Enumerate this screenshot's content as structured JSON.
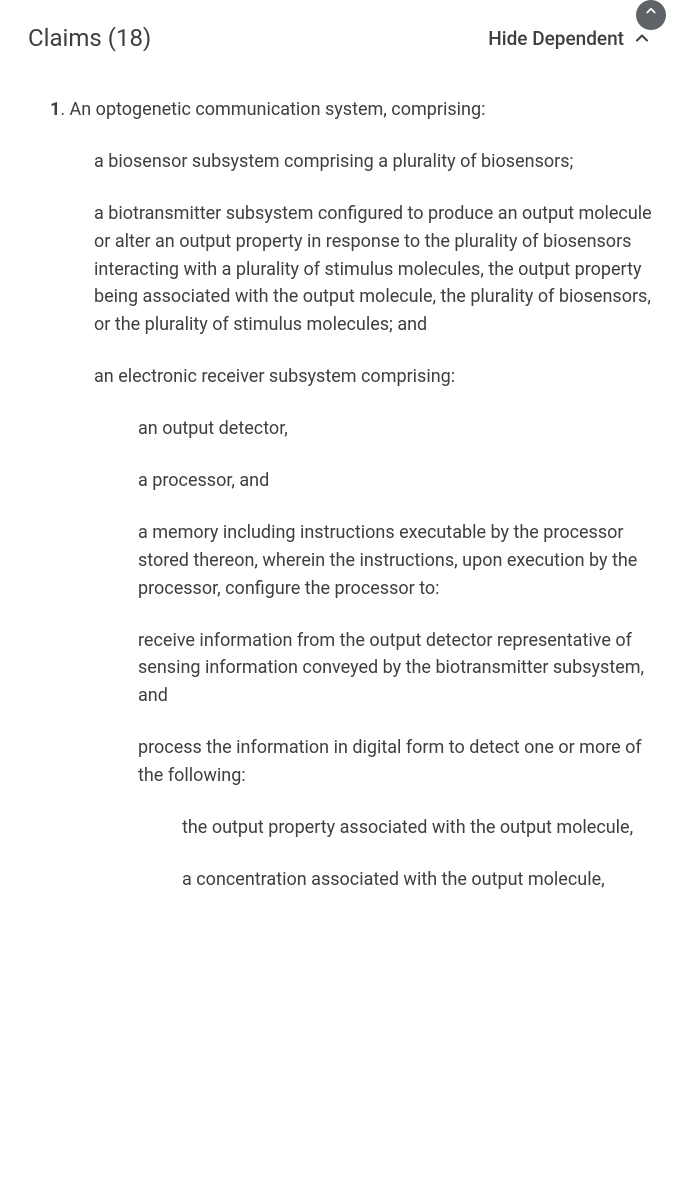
{
  "header": {
    "title_prefix": "Claims",
    "count": "(18)",
    "hide_label": "Hide Dependent"
  },
  "claim": {
    "number": "1",
    "preamble_rest": ". An optogenetic communication system, comprising:",
    "paras": [
      {
        "lvl": 1,
        "text": "a biosensor subsystem comprising a plurality of biosensors;"
      },
      {
        "lvl": 1,
        "text": "a biotransmitter subsystem configured to produce an output molecule or alter an output property in response to the plurality of biosensors interacting with a plurality of stimulus molecules, the output property being associated with the output molecule, the plurality of biosensors, or the plurality of stimulus molecules; and"
      },
      {
        "lvl": 1,
        "text": "an electronic receiver subsystem comprising:"
      },
      {
        "lvl": 2,
        "text": "an output detector,"
      },
      {
        "lvl": 2,
        "text": "a processor, and"
      },
      {
        "lvl": 2,
        "text": "a memory including instructions executable by the processor stored thereon, wherein the instructions, upon execution by the processor, configure the processor to:"
      },
      {
        "lvl": 2,
        "text": "receive information from the output detector representative of sensing information conveyed by the biotransmitter subsystem, and"
      },
      {
        "lvl": 2,
        "text": "process the information in digital form to detect one or more of the following:"
      },
      {
        "lvl": 3,
        "text": "the output property associated with the output molecule,"
      },
      {
        "lvl": 3,
        "text": "a concentration associated with the output molecule,"
      }
    ]
  }
}
